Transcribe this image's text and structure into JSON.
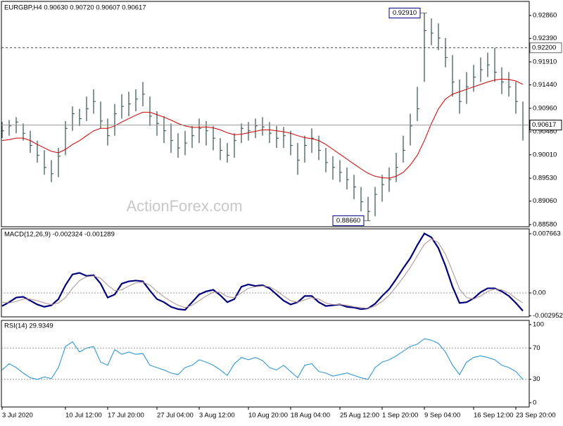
{
  "chart_data": [
    {
      "type": "ohlc",
      "title": "EURGBP,H4  0.90630 0.90720 0.90607 0.90617",
      "watermark": "ActionForex.com",
      "color": "#2f4f4f",
      "ylim": [
        0.88551,
        0.93134
      ],
      "yticks": [
        {
          "value": 0.9286,
          "label": "0.92860"
        },
        {
          "value": 0.9239,
          "label": "0.92390"
        },
        {
          "value": 0.9191,
          "label": "0.91910"
        },
        {
          "value": 0.9144,
          "label": "0.91440"
        },
        {
          "value": 0.9096,
          "label": "0.90960"
        },
        {
          "value": 0.9048,
          "label": "0.90480"
        },
        {
          "value": 0.9001,
          "label": "0.90010"
        },
        {
          "value": 0.8953,
          "label": "0.89530"
        },
        {
          "value": 0.8906,
          "label": "0.89060"
        },
        {
          "value": 0.8858,
          "label": "0.88580"
        }
      ],
      "high": [
        0.9068,
        0.9072,
        0.9078,
        0.9065,
        0.905,
        0.903,
        0.901,
        0.899,
        0.9015,
        0.907,
        0.91,
        0.9095,
        0.912,
        0.9135,
        0.911,
        0.9075,
        0.9105,
        0.9125,
        0.913,
        0.9135,
        0.915,
        0.912,
        0.909,
        0.908,
        0.9065,
        0.9045,
        0.905,
        0.906,
        0.9075,
        0.907,
        0.906,
        0.9035,
        0.9025,
        0.9045,
        0.9065,
        0.9068,
        0.9075,
        0.9078,
        0.9068,
        0.906,
        0.9058,
        0.905,
        0.9025,
        0.904,
        0.9055,
        0.904,
        0.9015,
        0.8998,
        0.899,
        0.8975,
        0.896,
        0.8935,
        0.8915,
        0.8935,
        0.896,
        0.8975,
        0.9005,
        0.904,
        0.9085,
        0.914,
        0.9291,
        0.928,
        0.927,
        0.924,
        0.9205,
        0.9155,
        0.917,
        0.9185,
        0.92,
        0.921,
        0.922,
        0.918,
        0.917,
        0.915,
        0.911
      ],
      "low": [
        0.9035,
        0.904,
        0.9045,
        0.903,
        0.9005,
        0.8985,
        0.896,
        0.8945,
        0.8955,
        0.9,
        0.905,
        0.906,
        0.907,
        0.9085,
        0.9055,
        0.902,
        0.904,
        0.9075,
        0.908,
        0.909,
        0.91,
        0.906,
        0.904,
        0.9025,
        0.9005,
        0.8995,
        0.9,
        0.9015,
        0.9025,
        0.902,
        0.901,
        0.899,
        0.8985,
        0.8995,
        0.9025,
        0.903,
        0.9035,
        0.904,
        0.9025,
        0.9015,
        0.9015,
        0.9,
        0.896,
        0.8985,
        0.9005,
        0.899,
        0.8965,
        0.895,
        0.8945,
        0.893,
        0.891,
        0.8885,
        0.8866,
        0.8875,
        0.8905,
        0.8925,
        0.8945,
        0.8985,
        0.902,
        0.907,
        0.915,
        0.9225,
        0.9215,
        0.918,
        0.912,
        0.9085,
        0.9105,
        0.913,
        0.915,
        0.916,
        0.915,
        0.9125,
        0.912,
        0.9085,
        0.903
      ],
      "close": [
        0.905,
        0.906,
        0.9068,
        0.9045,
        0.902,
        0.9,
        0.8975,
        0.8962,
        0.8998,
        0.9055,
        0.9085,
        0.9075,
        0.9095,
        0.911,
        0.907,
        0.904,
        0.9085,
        0.91,
        0.9105,
        0.9115,
        0.9125,
        0.908,
        0.9065,
        0.905,
        0.903,
        0.9015,
        0.9025,
        0.904,
        0.9055,
        0.905,
        0.9035,
        0.901,
        0.9,
        0.903,
        0.9055,
        0.905,
        0.906,
        0.9058,
        0.9045,
        0.9035,
        0.904,
        0.902,
        0.899,
        0.902,
        0.9035,
        0.901,
        0.8985,
        0.8975,
        0.8965,
        0.895,
        0.8935,
        0.8905,
        0.8885,
        0.892,
        0.894,
        0.895,
        0.8975,
        0.901,
        0.906,
        0.9095,
        0.9255,
        0.925,
        0.924,
        0.92,
        0.915,
        0.911,
        0.914,
        0.916,
        0.9175,
        0.9185,
        0.917,
        0.915,
        0.914,
        0.911,
        0.90617
      ],
      "series": [
        {
          "color": "#d40000",
          "values": [
            0.903,
            0.9032,
            0.9035,
            0.9035,
            0.903,
            0.9022,
            0.9015,
            0.9008,
            0.9005,
            0.9012,
            0.9022,
            0.903,
            0.904,
            0.905,
            0.9055,
            0.9055,
            0.906,
            0.9068,
            0.9075,
            0.9082,
            0.9088,
            0.9088,
            0.9083,
            0.9078,
            0.9072,
            0.9065,
            0.906,
            0.9057,
            0.9057,
            0.9058,
            0.9056,
            0.9052,
            0.9046,
            0.9042,
            0.9043,
            0.9046,
            0.9049,
            0.9052,
            0.9052,
            0.905,
            0.9048,
            0.9045,
            0.904,
            0.9036,
            0.9034,
            0.903,
            0.9022,
            0.9012,
            0.9002,
            0.8992,
            0.8982,
            0.8972,
            0.8963,
            0.8957,
            0.8954,
            0.8953,
            0.8957,
            0.8965,
            0.898,
            0.9,
            0.903,
            0.9065,
            0.9095,
            0.9115,
            0.9125,
            0.913,
            0.9135,
            0.914,
            0.9145,
            0.915,
            0.9154,
            0.9156,
            0.9155,
            0.9152,
            0.9145
          ]
        }
      ],
      "hlines": [
        {
          "value": 0.922,
          "label": "0.92200",
          "style": "dashed"
        },
        {
          "value": 0.90617,
          "label": "0.90617",
          "style": "solid"
        }
      ],
      "annotations": [
        {
          "value": 0.9291,
          "label": "0.92910"
        },
        {
          "value": 0.8866,
          "label": "0.88660"
        }
      ]
    },
    {
      "type": "line",
      "title": "MACD(12,26,9) -0.002324 -0.001289",
      "ylim": [
        -0.0031,
        0.0083
      ],
      "yticks": [
        0.007663,
        {
          "value": 0,
          "label": "0.00"
        },
        -0.002952
      ],
      "levels": [
        0
      ],
      "series": [
        {
          "color": "#00007f",
          "width": 2.2,
          "values": [
            -0.0017,
            -0.0012,
            -0.0006,
            -0.0005,
            -0.001,
            -0.0015,
            -0.0018,
            -0.0016,
            -0.0008,
            0.001,
            0.0024,
            0.0026,
            0.0022,
            0.0023,
            0.0012,
            -0.0006,
            -0.0002,
            0.0012,
            0.0015,
            0.0016,
            0.0015,
            0.0003,
            -0.0008,
            -0.0012,
            -0.0018,
            -0.0021,
            -0.0022,
            -0.0012,
            -0.0002,
            0.0002,
            0.0004,
            -0.0003,
            -0.0012,
            -0.0008,
            0.0008,
            0.0011,
            0.0009,
            0.001,
            0.0006,
            -0.0002,
            -0.001,
            -0.0015,
            -0.0012,
            -0.0004,
            -0.0004,
            -0.0012,
            -0.0017,
            -0.0016,
            -0.0015,
            -0.0018,
            -0.0019,
            -0.0021,
            -0.002,
            -0.0014,
            -0.0004,
            0.0005,
            0.0018,
            0.0032,
            0.0045,
            0.0062,
            0.0077,
            0.0072,
            0.0058,
            0.0035,
            0.0008,
            -0.0013,
            -0.0012,
            -0.0007,
            0.0001,
            0.0006,
            0.0006,
            0.0002,
            -0.0004,
            -0.0013,
            -0.002324
          ]
        },
        {
          "color": "#b09090",
          "width": 1,
          "values": [
            -0.0012,
            -0.0013,
            -0.0011,
            -0.0008,
            -0.0008,
            -0.001,
            -0.0013,
            -0.0015,
            -0.0013,
            -0.0006,
            0.0006,
            0.0016,
            0.0021,
            0.0022,
            0.0019,
            0.001,
            0.0003,
            0.0004,
            0.0009,
            0.0013,
            0.0014,
            0.001,
            0.0002,
            -0.0005,
            -0.0011,
            -0.0016,
            -0.0019,
            -0.0016,
            -0.001,
            -0.0004,
            0.0001,
            0.0001,
            -0.0005,
            -0.0006,
            0,
            0.0006,
            0.0008,
            0.0009,
            0.0008,
            0.0003,
            -0.0004,
            -0.001,
            -0.0012,
            -0.0009,
            -0.0006,
            -0.0008,
            -0.0013,
            -0.0015,
            -0.0015,
            -0.0016,
            -0.0018,
            -0.0019,
            -0.002,
            -0.0017,
            -0.0011,
            -0.0003,
            0.0008,
            0.002,
            0.0033,
            0.0048,
            0.0063,
            0.007,
            0.0065,
            0.005,
            0.0028,
            0.0005,
            -0.0006,
            -0.0008,
            -0.0004,
            0.0002,
            0.0005,
            0.0004,
            0,
            -0.0007,
            -0.001289
          ]
        }
      ]
    },
    {
      "type": "line",
      "title": "RSI(14) 29.9349",
      "ylim": [
        -5.4,
        105.4
      ],
      "yticks": [
        100,
        70,
        30,
        0
      ],
      "levels": [
        70,
        30
      ],
      "series": [
        {
          "color": "#1e8fd0",
          "width": 1,
          "values": [
            42,
            50,
            45,
            38,
            32,
            30,
            33,
            31,
            45,
            72,
            78,
            65,
            70,
            72,
            52,
            48,
            68,
            62,
            65,
            62,
            63,
            48,
            45,
            42,
            38,
            36,
            45,
            48,
            55,
            52,
            48,
            42,
            35,
            50,
            58,
            55,
            58,
            54,
            45,
            42,
            48,
            40,
            32,
            48,
            50,
            40,
            38,
            34,
            36,
            38,
            35,
            32,
            30,
            45,
            52,
            55,
            60,
            66,
            72,
            75,
            82,
            80,
            76,
            65,
            48,
            36,
            52,
            58,
            60,
            58,
            55,
            48,
            45,
            40,
            29.9349
          ]
        }
      ],
      "categories": [
        "3 Jul 2020",
        null,
        null,
        null,
        null,
        null,
        null,
        null,
        null,
        "10 Jul 12:00",
        null,
        null,
        null,
        null,
        null,
        "17 Jul 20:00",
        null,
        null,
        null,
        null,
        null,
        null,
        "27 Jul 04:00",
        null,
        null,
        null,
        null,
        null,
        "3 Aug 12:00",
        null,
        null,
        null,
        null,
        null,
        null,
        "10 Aug 20:00",
        null,
        null,
        null,
        null,
        null,
        "18 Aug 04:00",
        null,
        null,
        null,
        null,
        null,
        null,
        "25 Aug 12:00",
        null,
        null,
        null,
        null,
        null,
        "1 Sep 20:00",
        null,
        null,
        null,
        null,
        null,
        "9 Sep 04:00",
        null,
        null,
        null,
        null,
        null,
        null,
        "16 Sep 12:00",
        null,
        null,
        null,
        null,
        null,
        "23 Sep 20:00",
        null
      ]
    }
  ]
}
